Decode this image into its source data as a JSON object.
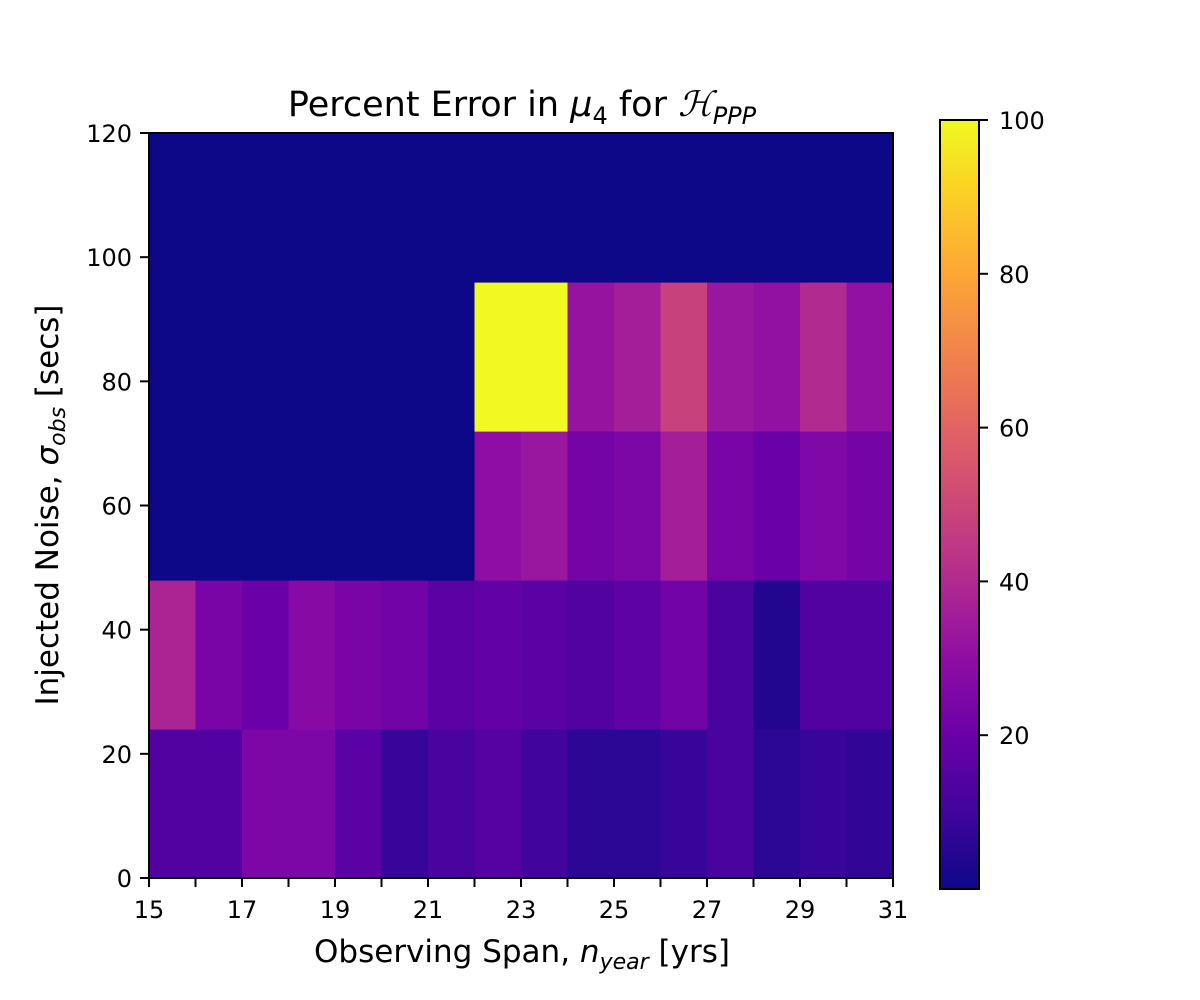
{
  "chart_data": {
    "type": "heatmap",
    "title": {
      "pre": "Percent Error in ",
      "sym": "μ",
      "sub": "4",
      "mid": " for ",
      "hsym": "ℋ",
      "hsub": "PPP"
    },
    "xlabel": {
      "pre": "Observing Span, ",
      "sym": "n",
      "sub": "year",
      "post": " [yrs]"
    },
    "ylabel": {
      "pre": "Injected Noise, ",
      "sym": "σ",
      "sub": "obs",
      "post": " [secs]"
    },
    "x_bin_edges": [
      15,
      16,
      17,
      18,
      19,
      20,
      21,
      22,
      23,
      24,
      25,
      26,
      27,
      28,
      29,
      30,
      31
    ],
    "y_bin_edges": [
      0,
      24,
      48,
      72,
      96,
      120
    ],
    "xlim": [
      15,
      31
    ],
    "ylim": [
      0,
      120
    ],
    "x_tick_labels": [
      "15",
      "17",
      "19",
      "21",
      "23",
      "25",
      "27",
      "29",
      "31"
    ],
    "y_tick_labels": [
      "0",
      "20",
      "40",
      "60",
      "80",
      "100",
      "120"
    ],
    "values": [
      [
        14,
        14,
        25,
        25,
        16,
        8,
        12,
        15,
        10,
        6,
        6,
        8,
        12,
        6,
        8,
        7
      ],
      [
        38,
        24,
        20,
        28,
        24,
        22,
        16,
        18,
        16,
        14,
        17,
        22,
        12,
        4,
        14,
        14
      ],
      [
        0,
        0,
        0,
        0,
        0,
        0,
        0,
        30,
        33,
        23,
        25,
        36,
        24,
        20,
        26,
        23
      ],
      [
        0,
        0,
        0,
        0,
        0,
        0,
        0,
        100,
        100,
        32,
        36,
        48,
        33,
        31,
        40,
        31
      ],
      [
        0,
        0,
        0,
        0,
        0,
        0,
        0,
        0,
        0,
        0,
        0,
        0,
        0,
        0,
        0,
        0
      ]
    ],
    "colorbar": {
      "min": 0,
      "max": 100,
      "tick_labels": [
        "20",
        "40",
        "60",
        "80",
        "100"
      ],
      "colormap": "plasma"
    }
  }
}
